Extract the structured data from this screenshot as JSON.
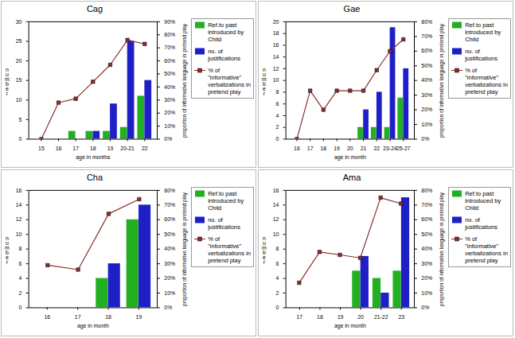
{
  "chart_data": [
    {
      "type": "bar",
      "title": "Cag",
      "x_label": "age in months",
      "y_label": "number",
      "y2_label": "proportion of informative language in pretend play",
      "legend": "right",
      "categories": [
        "15",
        "16",
        "17",
        "18",
        "19",
        "20-21",
        "22"
      ],
      "series": [
        {
          "name": "Ref.to past introduced by Child",
          "color": "#22b022",
          "type": "bar",
          "values": [
            null,
            null,
            2,
            2,
            2,
            3,
            11
          ]
        },
        {
          "name": "no. of justifications",
          "color": "#1f1fc8",
          "type": "bar",
          "values": [
            null,
            null,
            null,
            2,
            9,
            25,
            15
          ]
        },
        {
          "name": "% of \"informative\" verbalizations in pretend play",
          "color": "#8b2d2d",
          "type": "line",
          "marker": "square",
          "axis": "y2",
          "values": [
            0,
            28,
            31,
            44,
            57,
            76,
            73
          ]
        }
      ],
      "ylim": [
        0,
        30
      ],
      "yticks": [
        0,
        5,
        10,
        15,
        20,
        25,
        30
      ],
      "y2lim": [
        0,
        90
      ],
      "y2ticks": [
        {
          "value": 0,
          "label": "0%"
        },
        {
          "value": 10,
          "label": "10%"
        },
        {
          "value": 20,
          "label": "20%"
        },
        {
          "value": 30,
          "label": "30%"
        },
        {
          "value": 40,
          "label": "40%"
        },
        {
          "value": 50,
          "label": "50%"
        },
        {
          "value": 60,
          "label": "60%"
        },
        {
          "value": 70,
          "label": "70%"
        },
        {
          "value": 80,
          "label": "80%"
        },
        {
          "value": 90,
          "label": "90%"
        }
      ]
    },
    {
      "type": "bar",
      "title": "Gae",
      "x_label": "age in month",
      "y_label": "number",
      "y2_label": "proportion of informative language in pretend play",
      "legend": "right",
      "categories": [
        "16",
        "17",
        "18",
        "19",
        "20",
        "21",
        "22",
        "23-24",
        "25-27"
      ],
      "series": [
        {
          "name": "Ref.to past introduced by Child",
          "color": "#22b022",
          "type": "bar",
          "values": [
            null,
            null,
            null,
            null,
            null,
            2,
            2,
            2,
            7
          ]
        },
        {
          "name": "no. of justifications",
          "color": "#1f1fc8",
          "type": "bar",
          "values": [
            null,
            null,
            null,
            null,
            null,
            5,
            8,
            19,
            12
          ]
        },
        {
          "name": "% of \"informative\" verbalizations in pretend play",
          "color": "#8b2d2d",
          "type": "line",
          "marker": "square",
          "axis": "y2",
          "values": [
            0,
            33,
            20,
            33,
            33,
            33,
            47,
            60,
            68
          ]
        }
      ],
      "ylim": [
        0,
        20
      ],
      "yticks": [
        0,
        2,
        4,
        6,
        8,
        10,
        12,
        14,
        16,
        18,
        20
      ],
      "y2lim": [
        0,
        80
      ],
      "y2ticks": [
        {
          "value": 0,
          "label": "0%"
        },
        {
          "value": 10,
          "label": "10%"
        },
        {
          "value": 20,
          "label": "20%"
        },
        {
          "value": 30,
          "label": "30%"
        },
        {
          "value": 40,
          "label": "40%"
        },
        {
          "value": 50,
          "label": "50%"
        },
        {
          "value": 60,
          "label": "60%"
        },
        {
          "value": 70,
          "label": "70%"
        },
        {
          "value": 80,
          "label": "80%"
        }
      ]
    },
    {
      "type": "bar",
      "title": "Cha",
      "x_label": "age in month",
      "y_label": "number",
      "y2_label": "proportion of informative language in pretend play",
      "legend": "right",
      "categories": [
        "16",
        "17",
        "18",
        "19"
      ],
      "series": [
        {
          "name": "Ref.to past introduced by Child",
          "color": "#22b022",
          "type": "bar",
          "values": [
            null,
            null,
            4,
            12
          ]
        },
        {
          "name": "no. of justifications",
          "color": "#1f1fc8",
          "type": "bar",
          "values": [
            null,
            null,
            6,
            14
          ]
        },
        {
          "name": "% of \"informative\" verbalizations in pretend play",
          "color": "#8b2d2d",
          "type": "line",
          "marker": "square",
          "axis": "y2",
          "values": [
            29,
            26,
            64,
            74
          ]
        }
      ],
      "ylim": [
        0,
        16
      ],
      "yticks": [
        0,
        2,
        4,
        6,
        8,
        10,
        12,
        14,
        16
      ],
      "y2lim": [
        0,
        80
      ],
      "y2ticks": [
        {
          "value": 0,
          "label": "0%"
        },
        {
          "value": 10,
          "label": "10%"
        },
        {
          "value": 20,
          "label": "20%"
        },
        {
          "value": 30,
          "label": "30%"
        },
        {
          "value": 40,
          "label": "40%"
        },
        {
          "value": 50,
          "label": "50%"
        },
        {
          "value": 60,
          "label": "60%"
        },
        {
          "value": 70,
          "label": "70%"
        },
        {
          "value": 80,
          "label": "80%"
        }
      ]
    },
    {
      "type": "bar",
      "title": "Ama",
      "x_label": "age in month",
      "y_label": "number",
      "y2_label": "proportion of informative language in pretend play",
      "legend": "right",
      "categories": [
        "17",
        "18",
        "19",
        "20",
        "21-22",
        "23"
      ],
      "series": [
        {
          "name": "Ref.to past introduced by Child",
          "color": "#22b022",
          "type": "bar",
          "values": [
            null,
            null,
            null,
            5,
            4,
            5
          ]
        },
        {
          "name": "no. of justifications",
          "color": "#1f1fc8",
          "type": "bar",
          "values": [
            null,
            null,
            null,
            7,
            2,
            15
          ]
        },
        {
          "name": "% of \"informative\" verbalizations in pretend play",
          "color": "#8b2d2d",
          "type": "line",
          "marker": "square",
          "axis": "y2",
          "values": [
            17,
            38,
            36,
            34,
            75,
            71
          ]
        }
      ],
      "ylim": [
        0,
        16
      ],
      "yticks": [
        0,
        2,
        4,
        6,
        8,
        10,
        12,
        14,
        16
      ],
      "y2lim": [
        0,
        80
      ],
      "y2ticks": [
        {
          "value": 0,
          "label": "0%"
        },
        {
          "value": 10,
          "label": "10%"
        },
        {
          "value": 20,
          "label": "20%"
        },
        {
          "value": 30,
          "label": "30%"
        },
        {
          "value": 40,
          "label": "40%"
        },
        {
          "value": 50,
          "label": "50%"
        },
        {
          "value": 60,
          "label": "60%"
        },
        {
          "value": 70,
          "label": "70%"
        },
        {
          "value": 80,
          "label": "80%"
        }
      ]
    }
  ]
}
